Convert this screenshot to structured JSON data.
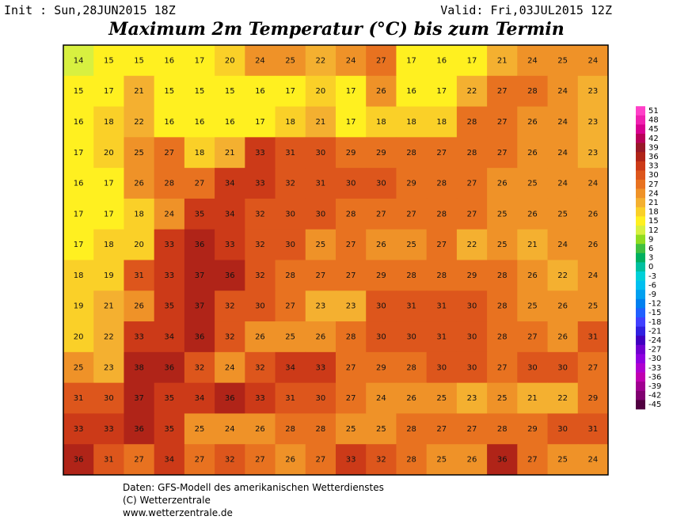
{
  "header": {
    "init": "Init : Sun,28JUN2015 18Z",
    "valid": "Valid: Fri,03JUL2015 12Z",
    "title": "Maximum 2m Temperatur (°C) bis zum Termin"
  },
  "footer": [
    "Daten: GFS-Modell des amerikanischen Wetterdienstes",
    "(C) Wetterzentrale",
    "www.wetterzentrale.de"
  ],
  "colorbar": {
    "labels": [
      51,
      48,
      45,
      42,
      39,
      36,
      33,
      30,
      27,
      24,
      21,
      18,
      15,
      12,
      9,
      6,
      3,
      0,
      -3,
      -6,
      -9,
      -12,
      -15,
      -18,
      -21,
      -24,
      -27,
      -30,
      -33,
      -36,
      -39,
      -42,
      -45
    ],
    "colors": [
      "#ff40c8",
      "#f020b0",
      "#d80090",
      "#b80058",
      "#981828",
      "#b02418",
      "#cc3a18",
      "#dd561c",
      "#e87220",
      "#ef9228",
      "#f4b030",
      "#fad028",
      "#fff020",
      "#d8f040",
      "#90dc20",
      "#40c040",
      "#00b060",
      "#00c0a0",
      "#00d0d8",
      "#00c0f0",
      "#00a0f0",
      "#0080f0",
      "#2060ff",
      "#4040ff",
      "#3020e0",
      "#4000c0",
      "#7000d0",
      "#9000e0",
      "#b000d0",
      "#c000b0",
      "#a00090",
      "#800070",
      "#500040"
    ]
  },
  "map": {
    "rows": [
      [
        14,
        15,
        15,
        16,
        17,
        20,
        24,
        25,
        22,
        24,
        27,
        17,
        16,
        17,
        21,
        24,
        25,
        24
      ],
      [
        15,
        17,
        21,
        15,
        15,
        15,
        16,
        17,
        20,
        17,
        26,
        16,
        17,
        22,
        27,
        28,
        24,
        23
      ],
      [
        16,
        18,
        22,
        16,
        16,
        16,
        17,
        18,
        21,
        17,
        18,
        18,
        18,
        28,
        27,
        26,
        24,
        23
      ],
      [
        17,
        20,
        25,
        27,
        18,
        21,
        33,
        31,
        30,
        29,
        29,
        28,
        27,
        28,
        27,
        26,
        24,
        23
      ],
      [
        16,
        17,
        26,
        28,
        27,
        34,
        33,
        32,
        31,
        30,
        30,
        29,
        28,
        27,
        26,
        25,
        24,
        24
      ],
      [
        17,
        17,
        18,
        24,
        35,
        34,
        32,
        30,
        30,
        28,
        27,
        27,
        28,
        27,
        25,
        26,
        25,
        26
      ],
      [
        17,
        18,
        20,
        33,
        36,
        33,
        32,
        30,
        25,
        27,
        26,
        25,
        27,
        22,
        25,
        21,
        24,
        26
      ],
      [
        18,
        19,
        31,
        33,
        37,
        36,
        32,
        28,
        27,
        27,
        29,
        28,
        28,
        29,
        28,
        26,
        22,
        24
      ],
      [
        19,
        21,
        26,
        35,
        37,
        32,
        30,
        27,
        23,
        23,
        30,
        31,
        31,
        30,
        28,
        25,
        26,
        25
      ],
      [
        20,
        22,
        33,
        34,
        36,
        32,
        26,
        25,
        26,
        28,
        30,
        30,
        31,
        30,
        28,
        27,
        26,
        31
      ],
      [
        25,
        23,
        38,
        36,
        32,
        24,
        32,
        34,
        33,
        27,
        29,
        28,
        30,
        30,
        27,
        30,
        30,
        27
      ],
      [
        31,
        30,
        37,
        35,
        34,
        36,
        33,
        31,
        30,
        27,
        24,
        26,
        25,
        23,
        25,
        21,
        22,
        29
      ],
      [
        33,
        33,
        36,
        35,
        25,
        24,
        26,
        28,
        28,
        25,
        25,
        28,
        27,
        27,
        28,
        29,
        30,
        31
      ],
      [
        36,
        31,
        27,
        34,
        27,
        32,
        27,
        26,
        27,
        33,
        32,
        28,
        25,
        26,
        36,
        27,
        25,
        24
      ]
    ]
  }
}
